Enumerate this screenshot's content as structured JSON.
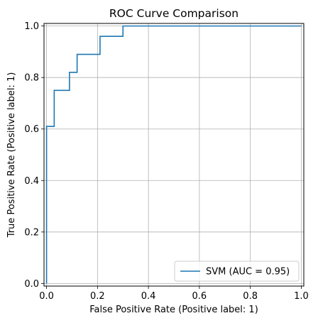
{
  "chart_data": {
    "type": "line",
    "title": "ROC Curve Comparison",
    "xlabel": "False Positive Rate (Positive label: 1)",
    "ylabel": "True Positive Rate (Positive label: 1)",
    "xlim": [
      -0.01,
      1.01
    ],
    "ylim": [
      -0.01,
      1.01
    ],
    "xticks": [
      0.0,
      0.2,
      0.4,
      0.6,
      0.8,
      1.0
    ],
    "yticks": [
      0.0,
      0.2,
      0.4,
      0.6,
      0.8,
      1.0
    ],
    "xtick_labels": [
      "0.0",
      "0.2",
      "0.4",
      "0.6",
      "0.8",
      "1.0"
    ],
    "ytick_labels": [
      "0.0",
      "0.2",
      "0.4",
      "0.6",
      "0.8",
      "1.0"
    ],
    "grid": true,
    "legend_position": "lower-right",
    "series": [
      {
        "name": "SVM (AUC = 0.95)",
        "color": "#1f77b4",
        "step": true,
        "x": [
          0.0,
          0.0,
          0.0,
          0.03,
          0.03,
          0.09,
          0.09,
          0.12,
          0.12,
          0.21,
          0.21,
          0.3,
          0.3,
          1.0
        ],
        "y": [
          0.0,
          0.61,
          0.61,
          0.61,
          0.75,
          0.75,
          0.82,
          0.82,
          0.89,
          0.89,
          0.96,
          0.96,
          1.0,
          1.0
        ]
      }
    ]
  }
}
